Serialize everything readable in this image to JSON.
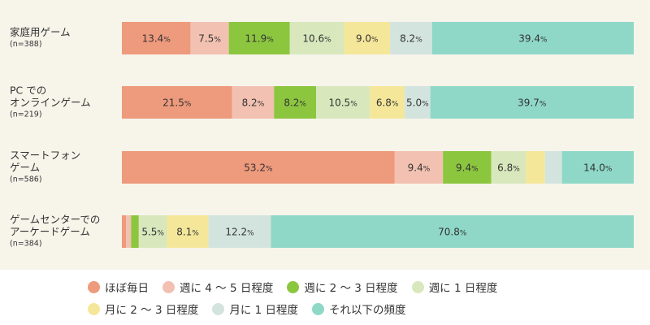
{
  "chart_data": {
    "type": "bar",
    "orientation": "horizontal",
    "stacked": true,
    "percent_unit": "%",
    "grid": false,
    "legend_position": "bottom",
    "categories": [
      {
        "lines": [
          "家庭用ゲーム"
        ],
        "n": "(n=388)"
      },
      {
        "lines": [
          "PC での",
          "オンラインゲーム"
        ],
        "n": "(n=219)"
      },
      {
        "lines": [
          "スマートフォン",
          "ゲーム"
        ],
        "n": "(n=586)"
      },
      {
        "lines": [
          "ゲームセンターでの",
          "アーケードゲーム"
        ],
        "n": "(n=384)"
      }
    ],
    "series": [
      {
        "name": "ほぼ毎日",
        "color": "#ee9a7c",
        "values": [
          13.4,
          21.5,
          53.2,
          0.8
        ],
        "labels": [
          "13.4",
          "21.5",
          "53.2",
          ""
        ]
      },
      {
        "name": "週に 4 〜 5 日程度",
        "color": "#f2c1b1",
        "values": [
          7.5,
          8.2,
          9.4,
          1.0
        ],
        "labels": [
          "7.5",
          "8.2",
          "9.4",
          ""
        ]
      },
      {
        "name": "週に 2 〜 3 日程度",
        "color": "#8cc63f",
        "values": [
          11.9,
          8.2,
          9.4,
          1.5
        ],
        "labels": [
          "11.9",
          "8.2",
          "9.4",
          ""
        ]
      },
      {
        "name": "週に 1 日程度",
        "color": "#d8e8bc",
        "values": [
          10.6,
          10.5,
          6.8,
          5.5
        ],
        "labels": [
          "10.6",
          "10.5",
          "6.8",
          "5.5"
        ]
      },
      {
        "name": "月に 2 〜 3 日程度",
        "color": "#f5e79a",
        "values": [
          9.0,
          6.8,
          3.7,
          8.1
        ],
        "labels": [
          "9.0",
          "6.8",
          "",
          "8.1"
        ]
      },
      {
        "name": "月に 1 日程度",
        "color": "#d3e4df",
        "values": [
          8.2,
          5.0,
          3.3,
          12.2
        ],
        "labels": [
          "8.2",
          "5.0",
          "",
          "12.2"
        ]
      },
      {
        "name": "それ以下の頻度",
        "color": "#8fd8c8",
        "values": [
          39.4,
          39.7,
          14.0,
          70.8
        ],
        "labels": [
          "39.4",
          "39.7",
          "14.0",
          "70.8"
        ]
      }
    ]
  }
}
